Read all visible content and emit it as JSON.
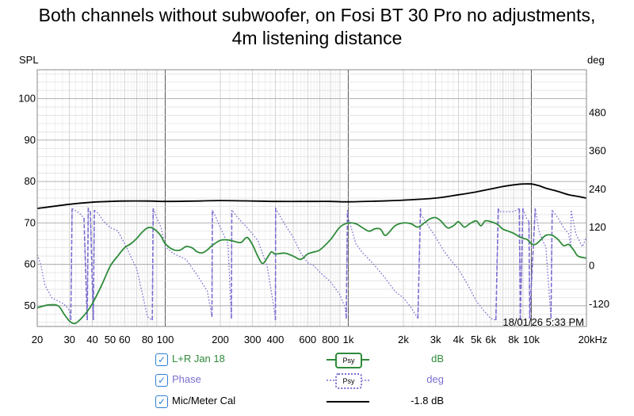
{
  "title_line1": "Both channels without subwoofer, on Fosi BT 30 Pro no adjustments,",
  "title_line2": "4m listening distance",
  "timestamp": "18/01/26 5:33 PM",
  "chart_data": {
    "type": "line",
    "title": "Both channels without subwoofer, on Fosi BT 30 Pro no adjustments, 4m listening distance",
    "ylabel": "SPL",
    "y2label": "deg",
    "xscale": "log",
    "xlim": [
      20,
      20000
    ],
    "ylim": [
      45,
      107
    ],
    "y2lim": [
      -190,
      615
    ],
    "x_ticks": [
      {
        "value": 20,
        "label": "20"
      },
      {
        "value": 30,
        "label": "30"
      },
      {
        "value": 40,
        "label": "40"
      },
      {
        "value": 50,
        "label": "50"
      },
      {
        "value": 60,
        "label": "60"
      },
      {
        "value": 80,
        "label": "80"
      },
      {
        "value": 100,
        "label": "100"
      },
      {
        "value": 200,
        "label": "200"
      },
      {
        "value": 300,
        "label": "300"
      },
      {
        "value": 400,
        "label": "400"
      },
      {
        "value": 600,
        "label": "600"
      },
      {
        "value": 800,
        "label": "800"
      },
      {
        "value": 1000,
        "label": "1k"
      },
      {
        "value": 2000,
        "label": "2k"
      },
      {
        "value": 3000,
        "label": "3k"
      },
      {
        "value": 4000,
        "label": "4k"
      },
      {
        "value": 5000,
        "label": "5k"
      },
      {
        "value": 6000,
        "label": "6k"
      },
      {
        "value": 8000,
        "label": "8k"
      },
      {
        "value": 10000,
        "label": "10k"
      },
      {
        "value": 20000,
        "label": "20kHz"
      }
    ],
    "y_ticks": [
      50,
      60,
      70,
      80,
      90,
      100
    ],
    "y2_ticks": [
      -120,
      0,
      120,
      240,
      360,
      480
    ],
    "grid": true,
    "series": [
      {
        "name": "L+R Jan 18",
        "color": "#2e8b3a",
        "axis": "left",
        "x": [
          20,
          23,
          26,
          28,
          30,
          32,
          34,
          37,
          40,
          45,
          50,
          55,
          60,
          65,
          70,
          75,
          80,
          85,
          90,
          95,
          100,
          110,
          120,
          130,
          140,
          150,
          160,
          170,
          180,
          200,
          220,
          240,
          260,
          280,
          300,
          320,
          340,
          360,
          380,
          400,
          450,
          500,
          550,
          600,
          650,
          700,
          800,
          900,
          1000,
          1100,
          1200,
          1300,
          1400,
          1500,
          1600,
          1800,
          2000,
          2200,
          2400,
          2600,
          2800,
          3000,
          3200,
          3500,
          3800,
          4000,
          4300,
          4600,
          5000,
          5300,
          5600,
          6000,
          6500,
          7000,
          7500,
          8000,
          8500,
          9000,
          9500,
          10000,
          10500,
          11000,
          12000,
          13000,
          14000,
          15000,
          16000,
          17000,
          18000,
          20000
        ],
        "values": [
          49.5,
          50.2,
          50.0,
          48.0,
          46.3,
          45.7,
          46.5,
          48.3,
          50.5,
          55.0,
          59.5,
          62.0,
          64.0,
          65.0,
          66.3,
          67.8,
          68.8,
          68.8,
          68.0,
          66.8,
          65.0,
          63.6,
          63.4,
          64.3,
          64.0,
          63.0,
          62.8,
          63.5,
          64.5,
          65.8,
          65.9,
          65.5,
          65.3,
          66.5,
          64.7,
          62.0,
          60.2,
          61.5,
          63.0,
          62.5,
          62.7,
          62.0,
          61.2,
          62.5,
          63.0,
          63.5,
          66.0,
          69.0,
          70.0,
          69.8,
          68.8,
          68.0,
          68.6,
          68.5,
          67.0,
          69.3,
          70.0,
          69.8,
          69.0,
          70.0,
          71.0,
          71.3,
          70.5,
          68.8,
          69.5,
          70.3,
          69.0,
          69.8,
          70.5,
          69.3,
          70.5,
          70.3,
          69.7,
          68.5,
          68.0,
          67.5,
          66.8,
          66.3,
          66.0,
          65.0,
          64.8,
          65.5,
          67.0,
          67.0,
          66.0,
          64.5,
          64.8,
          63.5,
          62.0,
          61.5
        ]
      },
      {
        "name": "Phase",
        "color": "#7b6fd0",
        "axis": "right",
        "x": [
          20,
          21,
          22,
          24,
          26,
          28,
          30,
          30.5,
          31,
          34,
          36,
          37.5,
          38,
          39,
          40.5,
          41,
          43,
          46,
          50,
          55,
          60,
          70,
          80,
          85,
          86,
          90,
          95,
          100,
          110,
          130,
          150,
          170,
          180,
          181,
          190,
          200,
          220,
          230,
          231,
          250,
          280,
          320,
          360,
          390,
          400,
          401,
          420,
          450,
          500,
          550,
          600,
          650,
          700,
          800,
          900,
          960,
          975,
          990,
          1000,
          1050,
          1100,
          1200,
          1300,
          1400,
          1600,
          1800,
          2000,
          2200,
          2400,
          2480,
          2500,
          2700,
          3000,
          3300,
          3600,
          4000,
          4500,
          5000,
          5500,
          6000,
          6400,
          6600,
          6700,
          7000,
          7500,
          8000,
          8600,
          8700,
          9000,
          9400,
          9700,
          9800,
          10500,
          11000,
          11500,
          12000,
          12800,
          13000,
          14000,
          15000,
          16000,
          16400,
          16500,
          17500,
          19000,
          20000
        ],
        "values": [
          35,
          0,
          -60,
          -100,
          -110,
          -120,
          -140,
          -170,
          180,
          165,
          150,
          -170,
          180,
          170,
          -170,
          175,
          165,
          140,
          120,
          110,
          70,
          -10,
          -160,
          -170,
          180,
          150,
          120,
          60,
          40,
          20,
          -30,
          -80,
          -160,
          175,
          150,
          120,
          70,
          -165,
          175,
          150,
          120,
          80,
          0,
          -120,
          -170,
          180,
          160,
          130,
          90,
          40,
          10,
          0,
          -20,
          -50,
          -90,
          -130,
          -165,
          175,
          150,
          110,
          70,
          40,
          20,
          0,
          -40,
          -80,
          -100,
          -130,
          -165,
          180,
          160,
          130,
          90,
          50,
          20,
          -10,
          -60,
          -110,
          -140,
          -165,
          -170,
          180,
          170,
          170,
          170,
          170,
          180,
          -170,
          180,
          150,
          140,
          -165,
          180,
          110,
          80,
          60,
          -165,
          175,
          150,
          120,
          100,
          60,
          175,
          100,
          60,
          90
        ]
      },
      {
        "name": "Mic/Meter Cal",
        "color": "#000000",
        "axis": "left",
        "x": [
          20,
          30,
          40,
          50,
          60,
          80,
          100,
          150,
          200,
          300,
          400,
          600,
          800,
          1000,
          1500,
          2000,
          3000,
          4000,
          5000,
          6000,
          7000,
          8000,
          9000,
          10000,
          11000,
          12000,
          14000,
          16000,
          18000,
          20000
        ],
        "values": [
          73.5,
          74.5,
          75.0,
          75.2,
          75.3,
          75.3,
          75.2,
          75.3,
          75.4,
          75.3,
          75.2,
          75.2,
          75.2,
          75.1,
          75.3,
          75.5,
          76.0,
          76.8,
          77.5,
          78.2,
          78.8,
          79.2,
          79.4,
          79.4,
          79.0,
          78.4,
          77.6,
          76.8,
          76.4,
          76.0
        ]
      }
    ]
  },
  "legend": [
    {
      "label": "L+R Jan 18",
      "badge": "Psy",
      "unit": "dB",
      "color": "#2e8b3a",
      "checked": true
    },
    {
      "label": "Phase",
      "badge": "Psy",
      "unit": "deg",
      "color": "#7b6fd0",
      "checked": true
    },
    {
      "label": "Mic/Meter Cal",
      "unit": "-1.8 dB",
      "color": "#000000",
      "checked": true
    }
  ],
  "checkmark": "✓"
}
